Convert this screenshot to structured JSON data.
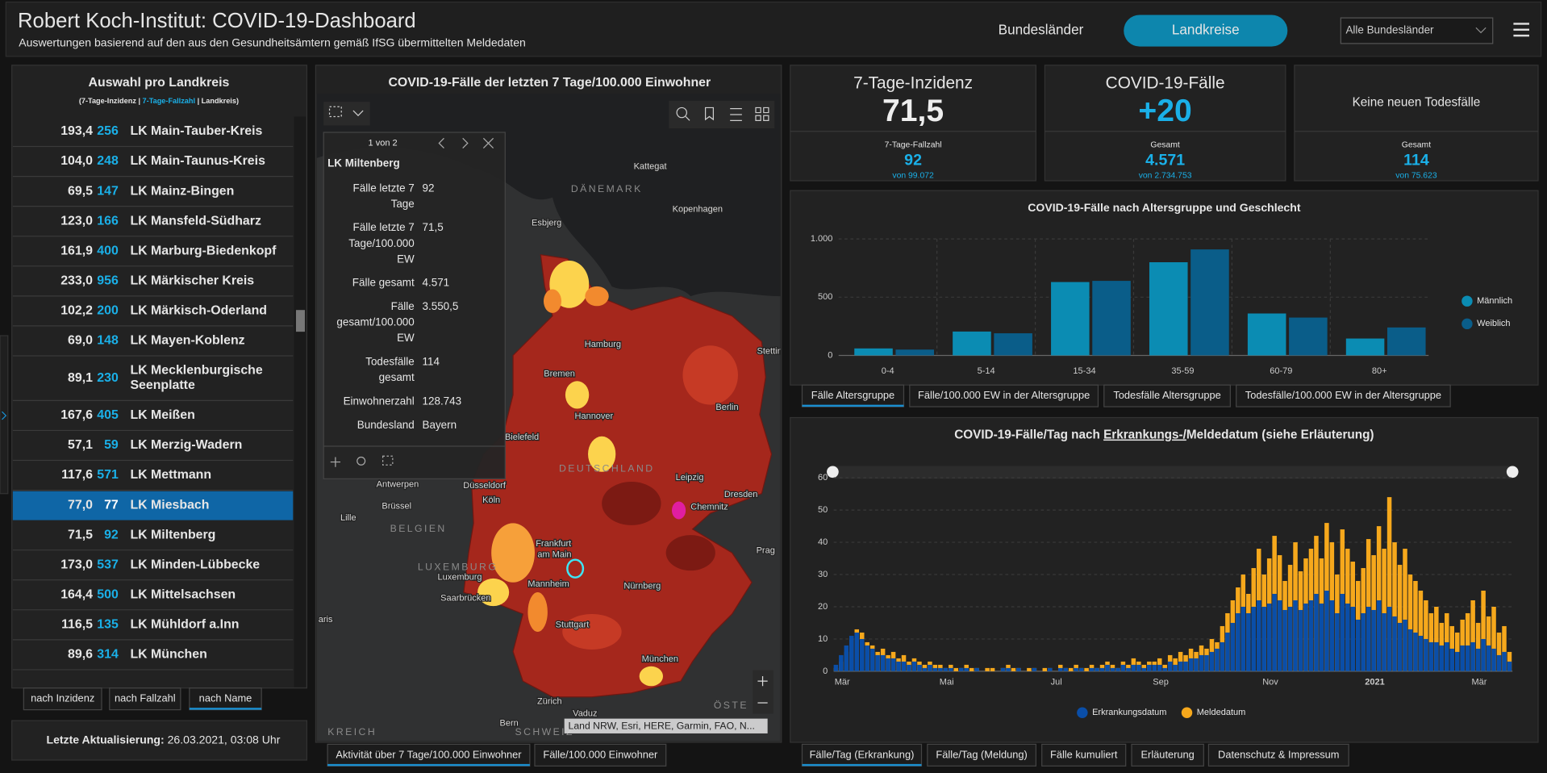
{
  "header": {
    "title": "Robert Koch-Institut: COVID-19-Dashboard",
    "subtitle": "Auswertungen basierend auf den aus den Gesundheitsämtern gemäß IfSG übermittelten Meldedaten",
    "tabs": [
      "Bundesländer",
      "Landkreise"
    ],
    "active_tab": 1,
    "dropdown": "Alle Bundesländer"
  },
  "list": {
    "title": "Auswahl pro Landkreis",
    "legend": [
      "(7-Tage-Inzidenz |",
      "7-Tage-Fallzahl",
      "| Landkreis)"
    ],
    "selected": 12,
    "rows": [
      {
        "incidence": "193,4",
        "count": "256",
        "name": [
          "LK Main-Tauber-Kreis"
        ]
      },
      {
        "incidence": "104,0",
        "count": "248",
        "name": [
          "LK Main-Taunus-Kreis"
        ]
      },
      {
        "incidence": "69,5",
        "count": "147",
        "name": [
          "LK Mainz-Bingen"
        ]
      },
      {
        "incidence": "123,0",
        "count": "166",
        "name": [
          "LK Mansfeld-Südharz"
        ]
      },
      {
        "incidence": "161,9",
        "count": "400",
        "name": [
          "LK Marburg-Biedenkopf"
        ]
      },
      {
        "incidence": "233,0",
        "count": "956",
        "name": [
          "LK Märkischer Kreis"
        ]
      },
      {
        "incidence": "102,2",
        "count": "200",
        "name": [
          "LK Märkisch-Oderland"
        ]
      },
      {
        "incidence": "69,0",
        "count": "148",
        "name": [
          "LK Mayen-Koblenz"
        ]
      },
      {
        "incidence": "89,1",
        "count": "230",
        "name": [
          "LK Mecklenburgische",
          "Seenplatte"
        ]
      },
      {
        "incidence": "167,6",
        "count": "405",
        "name": [
          "LK Meißen"
        ]
      },
      {
        "incidence": "57,1",
        "count": "59",
        "name": [
          "LK Merzig-Wadern"
        ]
      },
      {
        "incidence": "117,6",
        "count": "571",
        "name": [
          "LK Mettmann"
        ]
      },
      {
        "incidence": "77,0",
        "count": "77",
        "name": [
          "LK Miesbach"
        ]
      },
      {
        "incidence": "71,5",
        "count": "92",
        "name": [
          "LK Miltenberg"
        ]
      },
      {
        "incidence": "173,0",
        "count": "537",
        "name": [
          "LK Minden-Lübbecke"
        ]
      },
      {
        "incidence": "164,4",
        "count": "500",
        "name": [
          "LK Mittelsachsen"
        ]
      },
      {
        "incidence": "116,5",
        "count": "135",
        "name": [
          "LK Mühldorf a.Inn"
        ]
      },
      {
        "incidence": "89,6",
        "count": "314",
        "name": [
          "LK München"
        ]
      }
    ],
    "sort": [
      "nach Inzidenz",
      "nach Fallzahl",
      "nach Name"
    ],
    "active_sort": 2,
    "update_label": "Letzte Aktualisierung:",
    "update_value": "26.03.2021, 03:08 Uhr"
  },
  "map": {
    "title": "COVID-19-Fälle der letzten 7 Tage/100.000 Einwohner",
    "labels": [
      "Kattegat",
      "DÄNEMARK",
      "Esbjerg",
      "Kopenhagen",
      "Hamburg",
      "Stettin",
      "Bremen",
      "Berlin",
      "Hannover",
      "Bielefeld",
      "DEUTSCHLAND",
      "Leipzig",
      "Antwerpen",
      "Düsseldorf",
      "Dresden",
      "Köln",
      "Brüssel",
      "Chemnitz",
      "Lille",
      "BELGIEN",
      "Frankfurt",
      "am Main",
      "Prag",
      "LUXEMBURG",
      "Luxemburg",
      "Mannheim",
      "Nürnberg",
      "Saarbrücken",
      "aris",
      "Stuttgart",
      "München",
      "Zürich",
      "ÖSTE",
      "Vaduz",
      "Bern",
      "KREICH",
      "SCHWEIZ"
    ],
    "popup": {
      "pager": "1 von 2",
      "name": "LK Miltenberg",
      "fields": [
        {
          "label": [
            "Fälle letzte 7",
            "Tage"
          ],
          "value": "92"
        },
        {
          "label": [
            "Fälle letzte 7",
            "Tage/100.000",
            "EW"
          ],
          "value": "71,5"
        },
        {
          "label": [
            "Fälle gesamt"
          ],
          "value": "4.571"
        },
        {
          "label": [
            "Fälle",
            "gesamt/100.000",
            "EW"
          ],
          "value": "3.550,5"
        },
        {
          "label": [
            "Todesfälle",
            "gesamt"
          ],
          "value": "114"
        },
        {
          "label": [
            "Einwohnerzahl"
          ],
          "value": "128.743"
        },
        {
          "label": [
            "Bundesland"
          ],
          "value": "Bayern"
        }
      ]
    },
    "attribution": "Land NRW, Esri, HERE, Garmin, FAO, N...",
    "tabs": [
      "Aktivität über 7 Tage/100.000 Einwohner",
      "Fälle/100.000 Einwohner"
    ],
    "active_tab": 0
  },
  "kpis": [
    {
      "title": "7-Tage-Inzidenz",
      "value": "71,5",
      "sub_label": "7-Tage-Fallzahl",
      "sub_value": "92",
      "sub_note": "von 99.072"
    },
    {
      "title": "COVID-19-Fälle",
      "value": "+20",
      "sub_label": "Gesamt",
      "sub_value": "4.571",
      "sub_note": "von 2.734.753"
    },
    {
      "title": "Keine neuen Todesfälle",
      "sub_label": "Gesamt",
      "sub_value": "114",
      "sub_note": "von 75.623"
    }
  ],
  "age_tabs": [
    "Fälle Altersgruppe",
    "Fälle/100.000 EW in der Altersgruppe",
    "Todesfälle Altersgruppe",
    "Todesfälle/100.000 EW in der Altersgruppe"
  ],
  "age_active_tab": 0,
  "daily_tabs": [
    "Fälle/Tag (Erkrankung)",
    "Fälle/Tag (Meldung)",
    "Fälle kumuliert",
    "Erläuterung",
    "Datenschutz & Impressum"
  ],
  "daily_active_tab": 0,
  "chart_data": [
    {
      "type": "bar",
      "title": "COVID-19-Fälle nach Altersgruppe und Geschlecht",
      "categories": [
        "0-4",
        "5-14",
        "15-34",
        "35-59",
        "60-79",
        "80+"
      ],
      "series": [
        {
          "name": "Männlich",
          "color": "#0b8cb3",
          "values": [
            60,
            205,
            630,
            800,
            360,
            145
          ]
        },
        {
          "name": "Weiblich",
          "color": "#0a5d89",
          "values": [
            50,
            190,
            640,
            910,
            325,
            240
          ]
        }
      ],
      "ylim": [
        0,
        1000
      ],
      "yticks": [
        0,
        500,
        {
          "value": 1000,
          "label": "1.000"
        }
      ],
      "grid": true,
      "legend": "right"
    },
    {
      "type": "bar-overlay",
      "title_parts": [
        "COVID-19-Fälle/Tag nach ",
        "Erkrankungs-/",
        "Meldedatum (siehe Erläuterung)"
      ],
      "categories": [
        "Mär",
        null,
        null,
        null,
        null,
        null,
        null,
        null,
        null,
        null,
        null,
        null,
        null,
        null,
        null,
        null,
        null,
        null,
        null,
        null,
        "Mai",
        null,
        null,
        null,
        null,
        null,
        null,
        null,
        null,
        null,
        null,
        null,
        null,
        null,
        null,
        null,
        null,
        null,
        null,
        null,
        null,
        "Jul",
        null,
        null,
        null,
        null,
        null,
        null,
        null,
        null,
        null,
        null,
        null,
        null,
        null,
        null,
        null,
        null,
        null,
        null,
        null,
        "Sep",
        null,
        null,
        null,
        null,
        null,
        null,
        null,
        null,
        null,
        null,
        null,
        null,
        null,
        null,
        null,
        null,
        null,
        null,
        null,
        null,
        "Nov",
        null,
        null,
        null,
        null,
        null,
        null,
        null,
        null,
        null,
        null,
        null,
        null,
        null,
        null,
        null,
        null,
        null,
        null,
        null,
        "2021",
        null,
        null,
        null,
        null,
        null,
        null,
        null,
        null,
        null,
        null,
        null,
        null,
        null,
        null,
        null,
        null,
        null,
        null,
        null,
        "Mär",
        null,
        null,
        null,
        null,
        null,
        null,
        null
      ],
      "series": [
        {
          "name": "Erkrankungsdatum",
          "color": "#0a4ea8",
          "values": [
            2,
            5,
            8,
            11,
            12,
            10,
            8,
            7,
            5,
            5,
            4,
            4,
            3,
            3,
            2,
            3,
            2,
            1,
            2,
            1,
            1,
            1,
            1,
            0,
            1,
            1,
            0,
            1,
            0,
            0,
            0,
            0,
            1,
            1,
            0,
            1,
            0,
            0,
            1,
            0,
            0,
            1,
            0,
            1,
            1,
            0,
            1,
            1,
            0,
            1,
            1,
            1,
            2,
            1,
            1,
            2,
            1,
            2,
            2,
            1,
            2,
            2,
            2,
            1,
            3,
            2,
            3,
            3,
            4,
            4,
            5,
            5,
            6,
            7,
            9,
            12,
            15,
            18,
            20,
            18,
            20,
            22,
            20,
            21,
            24,
            22,
            19,
            20,
            22,
            19,
            21,
            22,
            24,
            21,
            25,
            22,
            18,
            24,
            21,
            20,
            16,
            18,
            20,
            19,
            22,
            18,
            20,
            17,
            15,
            16,
            13,
            12,
            11,
            10,
            9,
            9,
            8,
            9,
            7,
            6,
            8,
            8,
            9,
            7,
            10,
            8,
            7,
            5,
            6,
            3
          ]
        },
        {
          "name": "Meldedatum",
          "color": "#f6a81c",
          "values": [
            1,
            3,
            6,
            10,
            13,
            12,
            9,
            8,
            6,
            7,
            5,
            6,
            4,
            5,
            3,
            4,
            3,
            2,
            3,
            2,
            2,
            1,
            2,
            1,
            1,
            2,
            1,
            1,
            0,
            1,
            1,
            0,
            1,
            2,
            1,
            1,
            0,
            1,
            1,
            0,
            1,
            1,
            0,
            2,
            1,
            1,
            2,
            1,
            1,
            2,
            1,
            2,
            3,
            2,
            1,
            3,
            2,
            4,
            3,
            2,
            3,
            3,
            4,
            2,
            5,
            4,
            6,
            5,
            7,
            6,
            8,
            7,
            10,
            9,
            14,
            18,
            22,
            26,
            30,
            24,
            32,
            38,
            30,
            35,
            42,
            36,
            28,
            33,
            40,
            31,
            35,
            38,
            42,
            35,
            46,
            40,
            30,
            44,
            38,
            34,
            28,
            32,
            41,
            36,
            45,
            38,
            54,
            40,
            33,
            38,
            30,
            28,
            25,
            22,
            18,
            20,
            15,
            18,
            14,
            12,
            16,
            18,
            22,
            15,
            25,
            17,
            20,
            12,
            14,
            6
          ]
        }
      ],
      "ylim": [
        0,
        60
      ],
      "yticks": [
        0,
        10,
        20,
        30,
        40,
        50,
        60
      ],
      "grid": true,
      "legend": "bottom"
    }
  ]
}
